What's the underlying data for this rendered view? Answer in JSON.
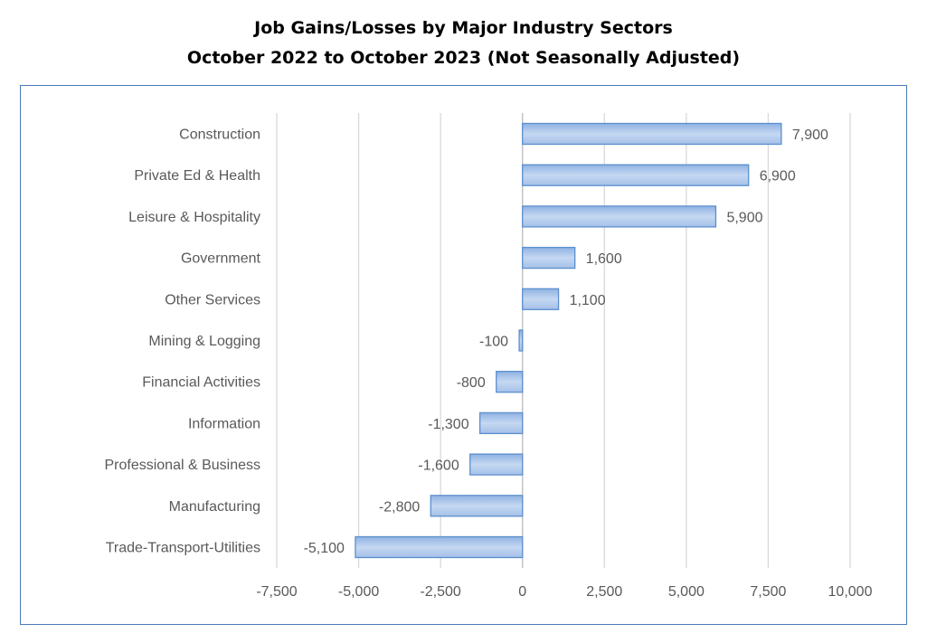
{
  "chart_data": {
    "type": "bar",
    "orientation": "horizontal",
    "title": "Job Gains/Losses by Major Industry Sectors",
    "subtitle": "October 2022 to October 2023 (Not Seasonally Adjusted)",
    "categories": [
      "Construction",
      "Private Ed & Health",
      "Leisure & Hospitality",
      "Government",
      "Other Services",
      "Mining & Logging",
      "Financial Activities",
      "Information",
      "Professional & Business",
      "Manufacturing",
      "Trade-Transport-Utilities"
    ],
    "values": [
      7900,
      6900,
      5900,
      1600,
      1100,
      -100,
      -800,
      -1300,
      -1600,
      -2800,
      -5100
    ],
    "data_labels": [
      "7,900",
      "6,900",
      "5,900",
      "1,600",
      "1,100",
      "-100",
      "-800",
      "-1,300",
      "-1,600",
      "-2,800",
      "-5,100"
    ],
    "xlim": [
      -7500,
      10000
    ],
    "xticks": [
      -7500,
      -5000,
      -2500,
      0,
      2500,
      5000,
      7500,
      10000
    ],
    "xtick_labels": [
      "-7,500",
      "-5,000",
      "-2,500",
      "0",
      "2,500",
      "5,000",
      "7,500",
      "10,000"
    ],
    "grid": true,
    "bar_color": "#a9c4ea",
    "bar_edge_color": "#5b8fce",
    "grid_color": "#d9d9d9",
    "frame_color": "#4a7ab8"
  }
}
